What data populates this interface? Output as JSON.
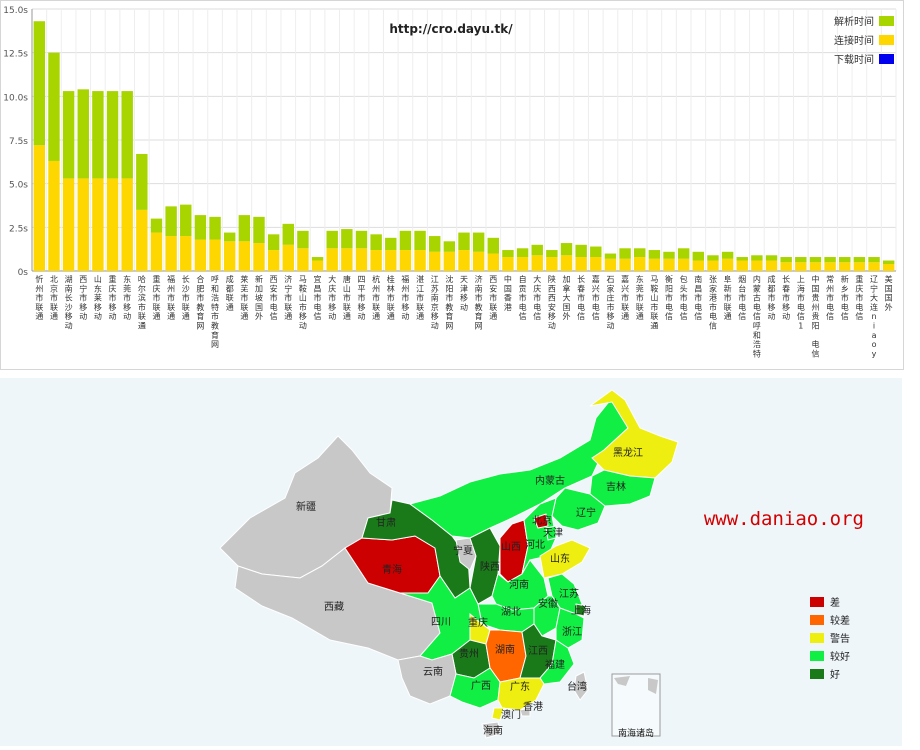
{
  "chart_data": {
    "type": "bar",
    "title": "http://cro.dayu.tk/",
    "y_unit": "s",
    "ylim": [
      0,
      15
    ],
    "yticks": [
      "0s",
      "2.5s",
      "5.0s",
      "7.5s",
      "10.0s",
      "12.5s",
      "15.0s"
    ],
    "grid": true,
    "stacked": true,
    "legend_position": "top-right",
    "categories": [
      "忻州市联通",
      "北京市联通",
      "湖南长沙移动",
      "西宁市移动",
      "山东莱移动",
      "重庆市移动",
      "东莞市移动",
      "哈尔滨市联通",
      "重庆市联通",
      "福州市联通",
      "长沙市联通",
      "合肥市教育网",
      "呼和浩特市教育网",
      "成都联通",
      "莱芜市联通",
      "新加坡国外",
      "西安市电信",
      "济宁市联通",
      "马鞍山市移动",
      "宜昌市电信",
      "大庆市移动",
      "唐山市联通",
      "四平市移动",
      "杭州市联通",
      "桂林市联通",
      "福州市移动",
      "湛江市联通",
      "江苏南京移动",
      "沈阳市教育网",
      "天津移动",
      "济南市教育网",
      "西安市联通",
      "中国香港",
      "自贡市电信",
      "大庆市电信",
      "陕西西安移动",
      "加拿大国外",
      "长春市电信",
      "嘉兴市电信",
      "石家庄市移动",
      "嘉兴市联通",
      "东莞市联通",
      "马鞍山市联通",
      "衡阳市电信",
      "包头市电信",
      "南昌市电信",
      "张家港市电信",
      "阜新市联通",
      "烟台市电信",
      "内蒙古电信呼和浩特",
      "成都市移动",
      "长春市移动",
      "上海市电信1",
      "中国贵州贵阳 电信",
      "常州市电信",
      "新乡市电信",
      "重庆市电信",
      "辽宁大连niaoy",
      "美国国外"
    ],
    "series": [
      {
        "name": "下载时间",
        "color": "#0000ee",
        "values": [
          0,
          0,
          0,
          0,
          0,
          0,
          0,
          0,
          0,
          0,
          0,
          0,
          0,
          0,
          0,
          0,
          0,
          0,
          0,
          0,
          0,
          0,
          0,
          0,
          0,
          0,
          0,
          0,
          0,
          0,
          0,
          0,
          0,
          0,
          0,
          0,
          0,
          0,
          0,
          0,
          0,
          0,
          0,
          0,
          0,
          0,
          0,
          0,
          0,
          0,
          0,
          0,
          0,
          0,
          0,
          0,
          0,
          0,
          0
        ]
      },
      {
        "name": "连接时间",
        "color": "#ffd700",
        "values": [
          7.2,
          6.3,
          5.3,
          5.3,
          5.3,
          5.3,
          5.3,
          3.5,
          2.2,
          2.0,
          2.0,
          1.8,
          1.8,
          1.7,
          1.7,
          1.6,
          1.2,
          1.5,
          1.3,
          0.6,
          1.3,
          1.3,
          1.3,
          1.2,
          1.2,
          1.2,
          1.2,
          1.1,
          1.1,
          1.2,
          1.1,
          1.0,
          0.8,
          0.8,
          0.9,
          0.8,
          0.9,
          0.8,
          0.8,
          0.7,
          0.7,
          0.8,
          0.7,
          0.7,
          0.7,
          0.6,
          0.6,
          0.7,
          0.6,
          0.6,
          0.6,
          0.5,
          0.5,
          0.5,
          0.5,
          0.5,
          0.5,
          0.5,
          0.4
        ]
      },
      {
        "name": "解析时间",
        "color": "#a8d400",
        "values": [
          7.1,
          6.2,
          5.0,
          5.1,
          5.0,
          5.0,
          5.0,
          3.2,
          0.8,
          1.7,
          1.8,
          1.4,
          1.3,
          0.5,
          1.5,
          1.5,
          0.9,
          1.2,
          1.0,
          0.2,
          1.0,
          1.1,
          1.0,
          0.9,
          0.7,
          1.1,
          1.1,
          0.9,
          0.6,
          1.0,
          1.1,
          0.9,
          0.4,
          0.5,
          0.6,
          0.4,
          0.7,
          0.7,
          0.6,
          0.3,
          0.6,
          0.5,
          0.5,
          0.4,
          0.6,
          0.5,
          0.3,
          0.4,
          0.2,
          0.3,
          0.3,
          0.3,
          0.3,
          0.3,
          0.3,
          0.3,
          0.3,
          0.3,
          0.2
        ]
      }
    ],
    "legend": [
      "解析时间",
      "连接时间",
      "下载时间"
    ]
  },
  "map": {
    "watermark": "www.daniao.org",
    "legend": [
      {
        "label": "差",
        "color": "#cc0000"
      },
      {
        "label": "较差",
        "color": "#ff6600"
      },
      {
        "label": "警告",
        "color": "#eeee11"
      },
      {
        "label": "较好",
        "color": "#11ee44"
      },
      {
        "label": "好",
        "color": "#1a7a1a"
      }
    ],
    "regions": [
      {
        "name": "黑龙江",
        "status": "警告",
        "color": "#eeee11"
      },
      {
        "name": "吉林",
        "status": "较好",
        "color": "#11ee44"
      },
      {
        "name": "辽宁",
        "status": "较好",
        "color": "#11ee44"
      },
      {
        "name": "内蒙古",
        "status": "较好",
        "color": "#11ee44"
      },
      {
        "name": "新疆",
        "status": "",
        "color": "#c8c8c8"
      },
      {
        "name": "西藏",
        "status": "",
        "color": "#c8c8c8"
      },
      {
        "name": "甘肃",
        "status": "好",
        "color": "#1a7a1a"
      },
      {
        "name": "宁夏",
        "status": "",
        "color": "#c8c8c8"
      },
      {
        "name": "青海",
        "status": "差",
        "color": "#cc0000"
      },
      {
        "name": "山西",
        "status": "差",
        "color": "#cc0000"
      },
      {
        "name": "北京",
        "status": "差",
        "color": "#cc0000"
      },
      {
        "name": "天津",
        "status": "较好",
        "color": "#11ee44"
      },
      {
        "name": "河北",
        "status": "较好",
        "color": "#11ee44"
      },
      {
        "name": "陕西",
        "status": "好",
        "color": "#1a7a1a"
      },
      {
        "name": "山东",
        "status": "警告",
        "color": "#eeee11"
      },
      {
        "name": "河南",
        "status": "较好",
        "color": "#11ee44"
      },
      {
        "name": "江苏",
        "status": "较好",
        "color": "#11ee44"
      },
      {
        "name": "安徽",
        "status": "较好",
        "color": "#11ee44"
      },
      {
        "name": "上海",
        "status": "好",
        "color": "#1a7a1a"
      },
      {
        "name": "湖北",
        "status": "较好",
        "color": "#11ee44"
      },
      {
        "name": "四川",
        "status": "较好",
        "color": "#11ee44"
      },
      {
        "name": "重庆",
        "status": "警告",
        "color": "#eeee11"
      },
      {
        "name": "浙江",
        "status": "较好",
        "color": "#11ee44"
      },
      {
        "name": "湖南",
        "status": "较差",
        "color": "#ff6600"
      },
      {
        "name": "贵州",
        "status": "好",
        "color": "#1a7a1a"
      },
      {
        "name": "江西",
        "status": "好",
        "color": "#1a7a1a"
      },
      {
        "name": "福建",
        "status": "较好",
        "color": "#11ee44"
      },
      {
        "name": "云南",
        "status": "",
        "color": "#c8c8c8"
      },
      {
        "name": "广西",
        "status": "较好",
        "color": "#11ee44"
      },
      {
        "name": "广东",
        "status": "警告",
        "color": "#eeee11"
      },
      {
        "name": "台湾",
        "status": "",
        "color": "#c8c8c8"
      },
      {
        "name": "香港",
        "status": "",
        "color": "#c8c8c8"
      },
      {
        "name": "澳门",
        "status": "警告",
        "color": "#eeee11"
      },
      {
        "name": "海南",
        "status": "",
        "color": "#c8c8c8"
      }
    ],
    "inset_label": "南海诸岛"
  }
}
